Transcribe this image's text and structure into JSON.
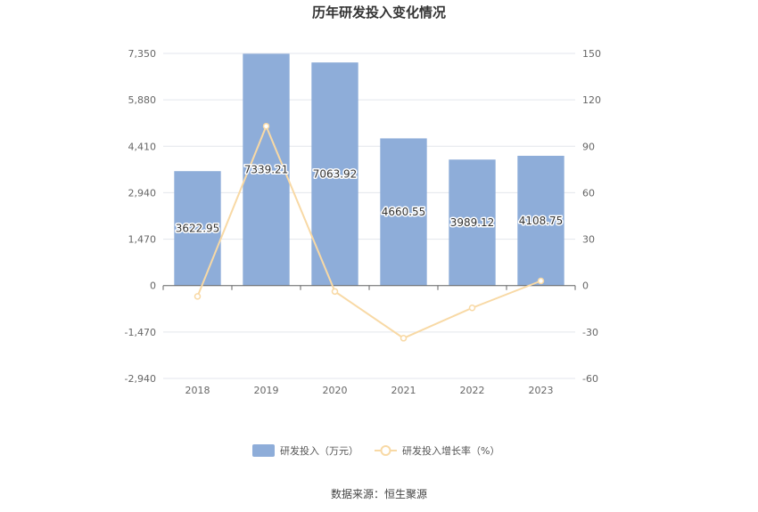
{
  "chart_data": {
    "type": "bar",
    "title": "历年研发投入变化情况",
    "categories": [
      "2018",
      "2019",
      "2020",
      "2021",
      "2022",
      "2023"
    ],
    "series": [
      {
        "name": "研发投入（万元）",
        "type": "bar",
        "axis": "left",
        "color": "#8eadd9",
        "values": [
          3622.95,
          7339.21,
          7063.92,
          4660.55,
          3989.12,
          4108.75
        ],
        "labels": [
          "3622.95",
          "7339.21",
          "7063.92",
          "4660.55",
          "3989.12",
          "4108.75"
        ]
      },
      {
        "name": "研发投入增长率（%）",
        "type": "line",
        "axis": "right",
        "color": "#f8d9a5",
        "values": [
          -7,
          103,
          -3.8,
          -34,
          -14.4,
          3
        ]
      }
    ],
    "y_left": {
      "min": -2940,
      "max": 7350,
      "ticks": [
        7350,
        5880,
        4410,
        2940,
        1470,
        0,
        -1470,
        -2940
      ],
      "tick_labels": [
        "7,350",
        "5,880",
        "4,410",
        "2,940",
        "1,470",
        "0",
        "-1,470",
        "-2,940"
      ]
    },
    "y_right": {
      "min": -60,
      "max": 150,
      "ticks": [
        150,
        120,
        90,
        60,
        30,
        0,
        -30,
        -60
      ],
      "tick_labels": [
        "150",
        "120",
        "90",
        "60",
        "30",
        "0",
        "-30",
        "-60"
      ]
    },
    "grid": true,
    "legend_position": "bottom",
    "source": "数据来源：恒生聚源"
  }
}
